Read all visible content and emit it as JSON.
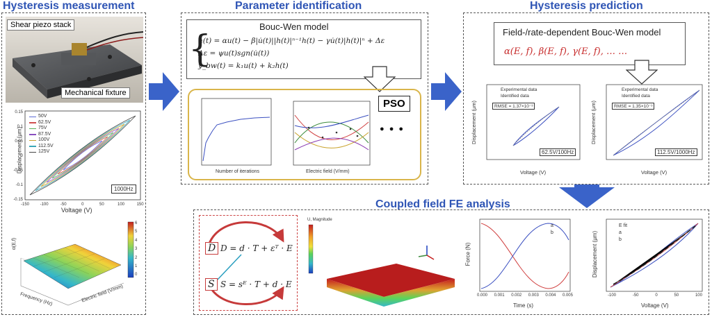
{
  "sections": {
    "measurement": "Hysteresis measurement",
    "identification": "Parameter identification",
    "prediction": "Hysteresis prediction",
    "fe": "Coupled field FE analysis"
  },
  "photo": {
    "label_top": "Shear piezo stack",
    "label_bottom": "Mechanical fixture"
  },
  "measure_chart": {
    "ylabel": "Displacement (μm)",
    "xlabel": "Voltage (V)",
    "legend": [
      "50V",
      "62.5V",
      "75V",
      "87.5V",
      "100V",
      "112.5V",
      "125V"
    ],
    "freq_label": "1000Hz",
    "yticks": [
      "0.15",
      "0.1",
      "0.05",
      "0",
      "-0.05",
      "-0.1",
      "-0.15"
    ],
    "xticks": [
      "-150",
      "-100",
      "-50",
      "0",
      "50",
      "100",
      "150"
    ]
  },
  "surface": {
    "xlabel": "Frequency (Hz)",
    "ylabel": "Electric field (V/mm)",
    "zlabel": "α(E,f)",
    "colorbar": [
      "6",
      "5",
      "4",
      "3",
      "2",
      "1",
      "0"
    ]
  },
  "bouc_wen": {
    "title": "Bouc-Wen model",
    "eq1": "h(t) = αu(t) − β|u̇(t)||h(t)|ⁿ⁻¹h(t) − γu̇(t)|h(t)|ⁿ + Δε",
    "eq2": "Δε = ψu(t)sgn(u̇(t))",
    "eq3": "y_bw(t) = k₁u(t) + k₂h(t)"
  },
  "pso": {
    "label": "PSO",
    "conv_xlabel": "Number of iterations",
    "params_xlabel": "Electric field (V/mm)",
    "dots": "● ● ●"
  },
  "prediction": {
    "title": "Field-/rate-dependent Bouc-Wen model",
    "params": "α(E, f), β(E, f), γ(E, f), … …",
    "left_chart": {
      "legend": [
        "Experimental data",
        "Identified data"
      ],
      "rmse": "RMSE = 1.37×10⁻³",
      "tag": "62.5V/100Hz",
      "xlabel": "Voltage (V)",
      "ylabel": "Displacement (μm)"
    },
    "right_chart": {
      "legend": [
        "Experimental data",
        "Identified data"
      ],
      "rmse": "RMSE = 1.35×10⁻³",
      "tag": "112.5V/1000Hz",
      "xlabel": "Voltage (V)",
      "ylabel": "Displacement (μm)"
    }
  },
  "fe": {
    "eq_d": "D = d · T + εᵀ · E",
    "eq_s": "S = sᴱ · T + d · E",
    "sym_D": "D",
    "sym_T": "T",
    "sym_S": "S",
    "sym_E": "E",
    "contour_title": "U, Magnitude",
    "force_chart": {
      "legend": [
        "a",
        "b"
      ],
      "xlabel": "Time (s)",
      "ylabel": "Force (N)",
      "xticks": [
        "0.000",
        "0.001",
        "0.002",
        "0.003",
        "0.004",
        "0.005"
      ]
    },
    "disp_chart": {
      "legend": [
        "E fit",
        "a",
        "b"
      ],
      "xlabel": "Voltage (V)",
      "ylabel": "Displacement (μm)",
      "xticks": [
        "-100",
        "-50",
        "0",
        "50",
        "100"
      ]
    }
  },
  "colors": {
    "title_blue": "#2f55b5",
    "arrow_blue": "#3a63c9",
    "pso_border": "#d9b54a",
    "red_arrow": "#c63a3a"
  }
}
